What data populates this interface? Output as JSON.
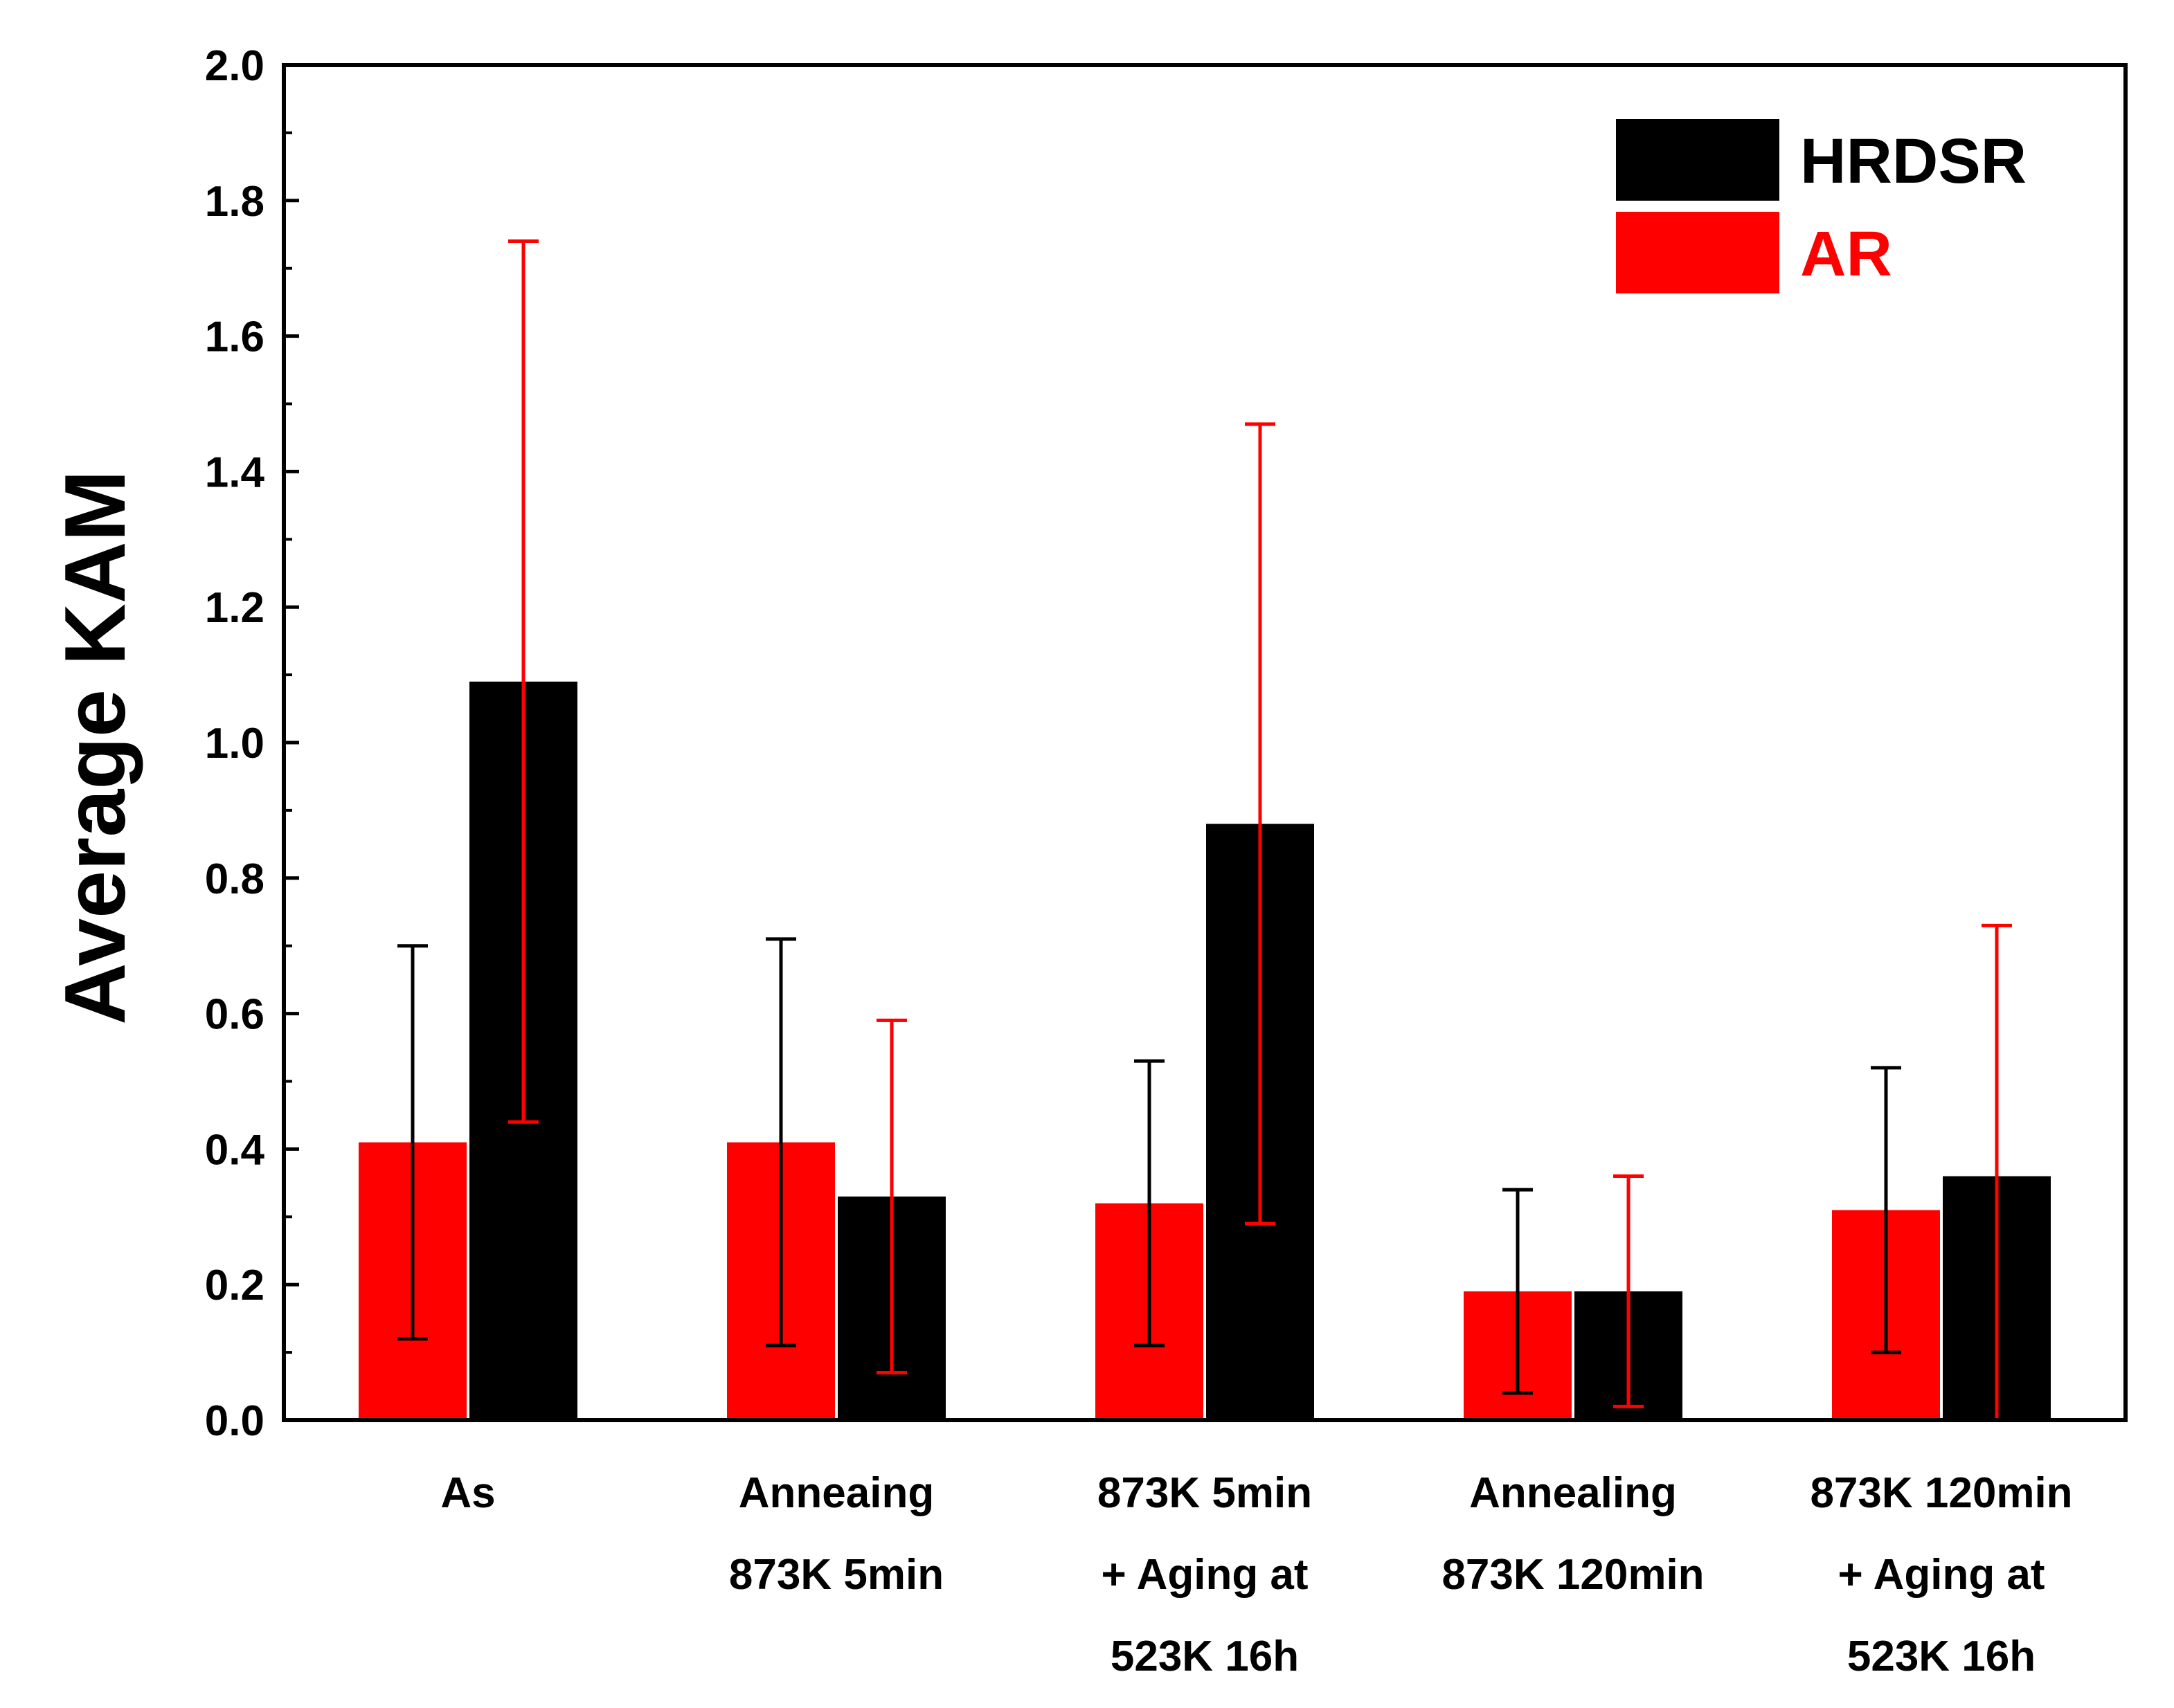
{
  "chart_data": {
    "type": "bar",
    "title": "",
    "xlabel": "",
    "ylabel": "Average KAM",
    "ylim": [
      0,
      2.0
    ],
    "yticks": [
      "0.0",
      "0.2",
      "0.4",
      "0.6",
      "0.8",
      "1.0",
      "1.2",
      "1.4",
      "1.6",
      "1.8",
      "2.0"
    ],
    "categories": [
      [
        "As"
      ],
      [
        "Anneaing",
        "873K 5min"
      ],
      [
        "873K 5min",
        "+ Aging at",
        "523K 16h"
      ],
      [
        "Annealing",
        "873K 120min"
      ],
      [
        "873K 120min",
        "+ Aging at",
        "523K 16h"
      ]
    ],
    "series": [
      {
        "name": "AR",
        "color": "#ff0000",
        "errorbar_color": "#000000",
        "values": [
          0.41,
          0.41,
          0.32,
          0.19,
          0.31
        ],
        "error_low": [
          0.12,
          0.11,
          0.11,
          0.04,
          0.1
        ],
        "error_high": [
          0.7,
          0.71,
          0.53,
          0.34,
          0.52
        ]
      },
      {
        "name": "HRDSR",
        "color": "#000000",
        "errorbar_color": "#ff0000",
        "values": [
          1.09,
          0.33,
          0.88,
          0.19,
          0.36
        ],
        "error_low": [
          0.44,
          0.07,
          0.29,
          0.02,
          0.0
        ],
        "error_high": [
          1.74,
          0.59,
          1.47,
          0.36,
          0.73
        ]
      }
    ],
    "legend": {
      "placement": "top-right",
      "entries": [
        {
          "label": "HRDSR",
          "color": "#000000",
          "text_color": "#000000"
        },
        {
          "label": "AR",
          "color": "#ff0000",
          "text_color": "#ff0000"
        }
      ]
    },
    "grid": false
  }
}
